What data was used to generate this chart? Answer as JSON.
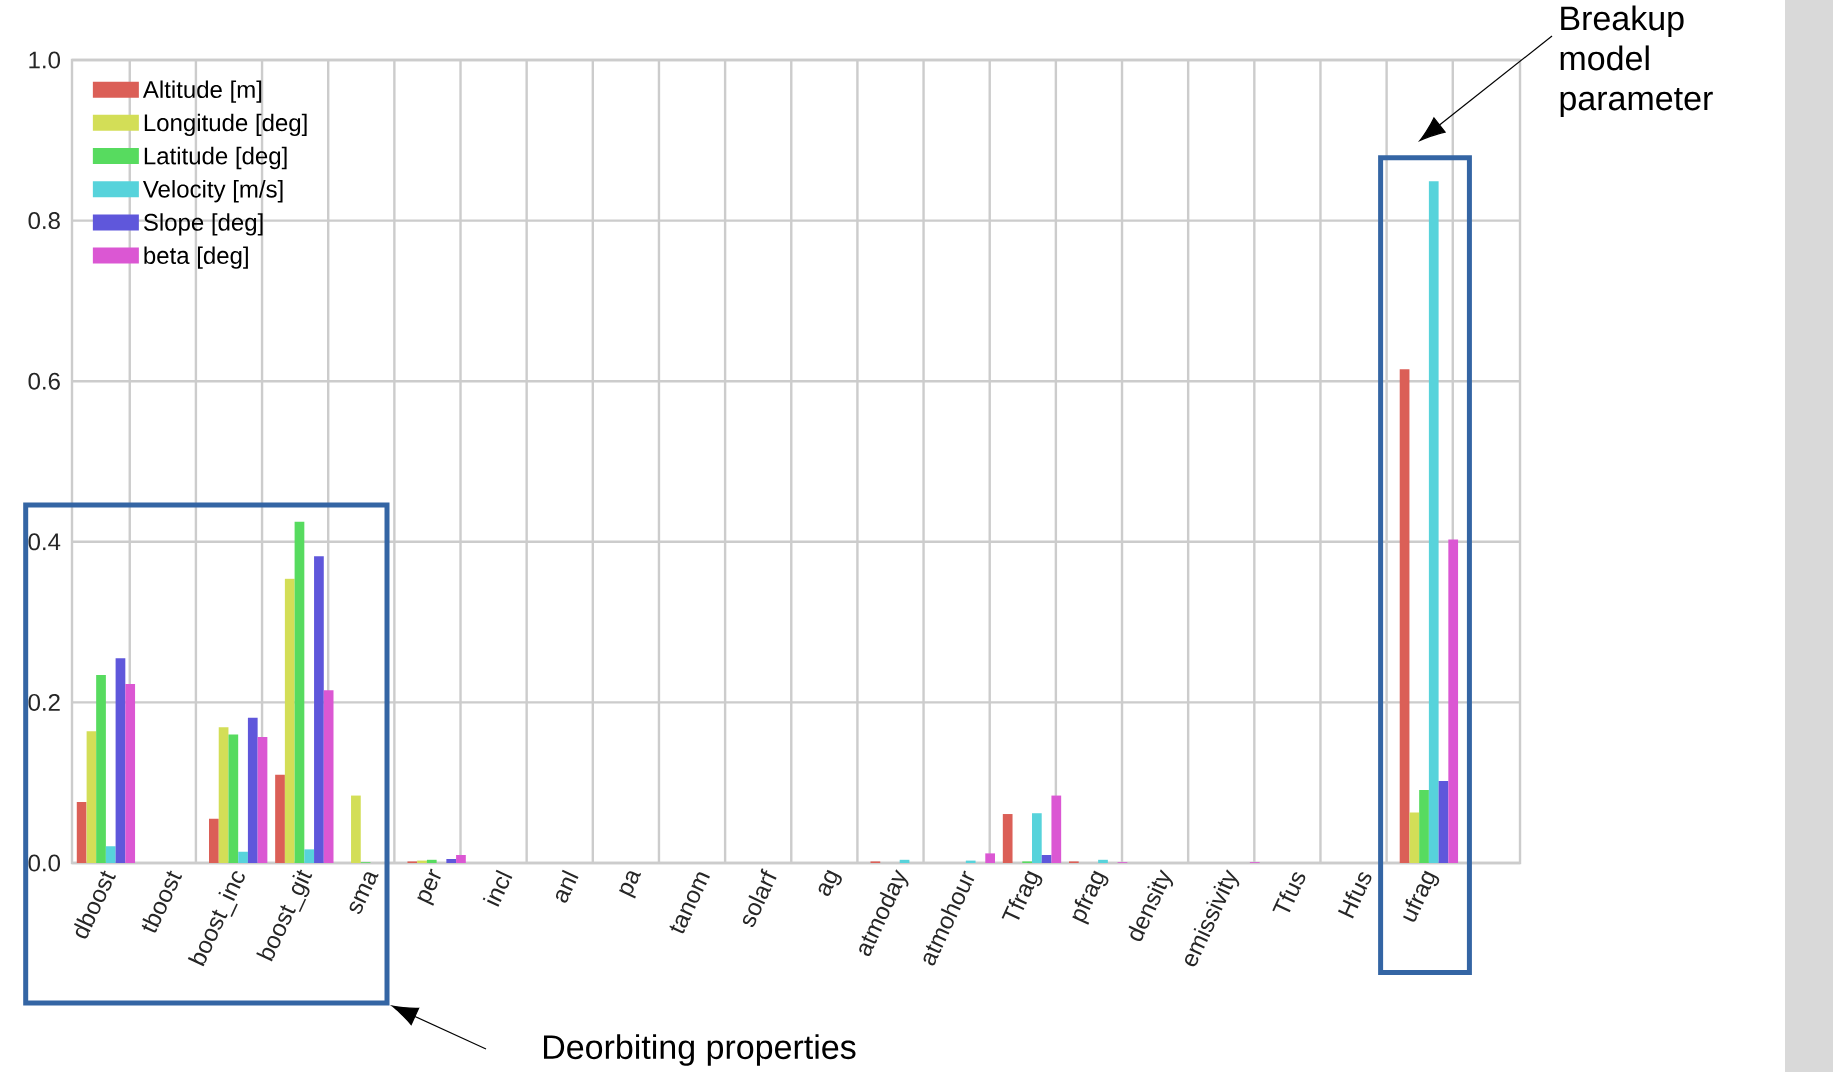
{
  "chart_data": {
    "type": "bar",
    "categories": [
      "dboost",
      "tboost",
      "boost_inc",
      "boost_git",
      "sma",
      "per",
      "incl",
      "anl",
      "pa",
      "tanom",
      "solarf",
      "ag",
      "atmoday",
      "atmohour",
      "Tfrag",
      "pfrag",
      "density",
      "emissivity",
      "Tfus",
      "Hfus",
      "ufrag"
    ],
    "series": [
      {
        "name": "Altitude [m]",
        "color": "#db5f57",
        "values": [
          0.076,
          0,
          0.055,
          0.11,
          0,
          0.002,
          0,
          0,
          0,
          0,
          0,
          0,
          0.002,
          0,
          0.061,
          0.002,
          0,
          0,
          0,
          0,
          0.615
        ]
      },
      {
        "name": "Longitude [deg]",
        "color": "#d3de57",
        "values": [
          0.164,
          0,
          0.169,
          0.354,
          0.084,
          0.003,
          0,
          0,
          0,
          0,
          0,
          0,
          0,
          0,
          0,
          0,
          0,
          0,
          0,
          0,
          0.063
        ]
      },
      {
        "name": "Latitude [deg]",
        "color": "#57db5f",
        "values": [
          0.234,
          0,
          0.16,
          0.425,
          0.001,
          0.004,
          0,
          0,
          0,
          0,
          0,
          0,
          0,
          0,
          0.002,
          0,
          0,
          0,
          0,
          0,
          0.091
        ]
      },
      {
        "name": "Velocity [m/s]",
        "color": "#57d3db",
        "values": [
          0.021,
          0,
          0.014,
          0.017,
          0,
          0,
          0,
          0,
          0,
          0,
          0,
          0,
          0.004,
          0.003,
          0.062,
          0.004,
          0,
          0,
          0,
          0,
          0.849
        ]
      },
      {
        "name": "Slope [deg]",
        "color": "#5f57db",
        "values": [
          0.255,
          0,
          0.181,
          0.382,
          0,
          0.005,
          0,
          0,
          0,
          0,
          0,
          0,
          0,
          0,
          0.01,
          0,
          0,
          0,
          0,
          0,
          0.102
        ]
      },
      {
        "name": "beta [deg]",
        "color": "#db57d3",
        "values": [
          0.223,
          0,
          0.157,
          0.215,
          0,
          0.01,
          0,
          0,
          0,
          0,
          0,
          0,
          0,
          0.012,
          0.084,
          0.001,
          0,
          0.001,
          0,
          0,
          0.403
        ]
      }
    ],
    "ylim": [
      0,
      1.0
    ],
    "yticks": [
      {
        "value": 0,
        "label": "0.0"
      },
      {
        "value": 0.2,
        "label": "0.2"
      },
      {
        "value": 0.4,
        "label": "0.4"
      },
      {
        "value": 0.6,
        "label": "0.6"
      },
      {
        "value": 0.8,
        "label": "0.8"
      },
      {
        "value": 1.0,
        "label": "1.0"
      }
    ],
    "grid": true,
    "legend": "top left",
    "annotations": [
      "Breakup model parameter",
      "Deorbiting properties"
    ]
  }
}
